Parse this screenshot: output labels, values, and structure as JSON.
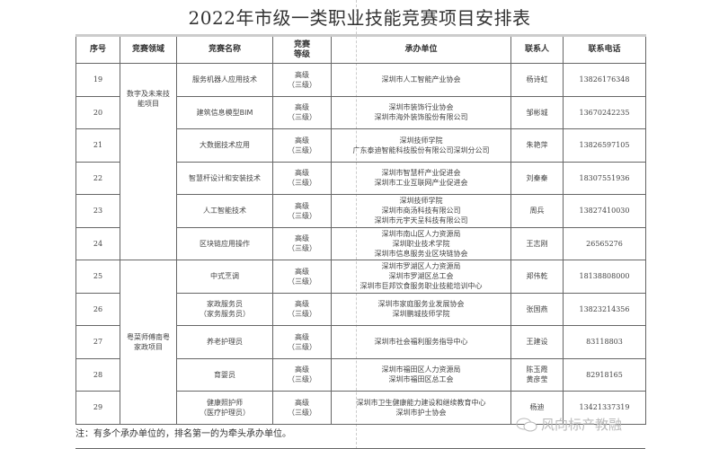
{
  "title": "2022年市级一类职业技能竞赛项目安排表",
  "headers": [
    "序号",
    "竞赛领域",
    "竞赛名称",
    "竞赛\n等级",
    "承办单位",
    "联系人",
    "联系电话"
  ],
  "domains": [
    "数字及未来技能项目",
    "粤菜师傅南粤家政项目"
  ],
  "rows": [
    {
      "no": "19",
      "name": "服务机器人应用技术",
      "level": "高级\n（三级）",
      "org": "深圳市人工智能产业协会",
      "contact": "杨诗虹",
      "phone": "13826176348"
    },
    {
      "no": "20",
      "name": "建筑信息模型BIM",
      "level": "高级\n（三级）",
      "org": "深圳市装饰行业协会\n深圳市海外装饰股份有限公司",
      "contact": "邹彬城",
      "phone": "13670242235"
    },
    {
      "no": "21",
      "name": "大数据技术应用",
      "level": "高级\n（三级）",
      "org": "深圳技师学院\n广东泰迪智能科技股份有限公司深圳分公司",
      "contact": "朱艳萍",
      "phone": "13826597105"
    },
    {
      "no": "22",
      "name": "智慧杆设计和安装技术",
      "level": "高级\n（三级）",
      "org": "深圳市智慧杆产业促进会\n深圳市工业互联网产业促进会",
      "contact": "刘秦秦",
      "phone": "18307551936"
    },
    {
      "no": "23",
      "name": "人工智能技术",
      "level": "高级\n（三级）",
      "org": "深圳技师学院\n深圳市商汤科技有限公司\n深圳市元宇天呈科技有限公司",
      "contact": "周兵",
      "phone": "13827410030"
    },
    {
      "no": "24",
      "name": "区块链应用操作",
      "level": "高级\n（三级）",
      "org": "深圳市南山区人力资源局\n深圳职业技术学院\n深圳市信息服务业区块链协会",
      "contact": "王志刚",
      "phone": "26565276"
    },
    {
      "no": "25",
      "name": "中式烹调",
      "level": "高级\n（三级）",
      "org": "深圳市罗湖区人力资源局\n深圳市罗湖区总工会\n深圳市巨邦饮食服务职业技能培训中心",
      "contact": "郑伟乾",
      "phone": "18138808000"
    },
    {
      "no": "26",
      "name": "家政服务员\n（家务服务员）",
      "level": "高级\n（三级）",
      "org": "深圳市家庭服务业发展协会\n深圳鹏城技师学院",
      "contact": "张国燕",
      "phone": "13823214356"
    },
    {
      "no": "27",
      "name": "养老护理员",
      "level": "高级\n（三级）",
      "org": "深圳市社会福利服务指导中心",
      "contact": "王建设",
      "phone": "83118803"
    },
    {
      "no": "28",
      "name": "育婴员",
      "level": "高级\n（三级）",
      "org": "深圳市福田区人力资源局\n深圳市福田区总工会",
      "contact": "陈玉霞\n黄彦莹",
      "phone": "82918165"
    },
    {
      "no": "29",
      "name": "健康照护师\n（医疗护理员）",
      "level": "高级\n（三级）",
      "org": "深圳市卫生健康能力建设和继续教育中心\n深圳市护士协会",
      "contact": "杨迪",
      "phone": "13421337319"
    }
  ],
  "note": "注：有多个承办单位的，排名第一的为牵头承办单位。",
  "watermark": "风向标产教融"
}
